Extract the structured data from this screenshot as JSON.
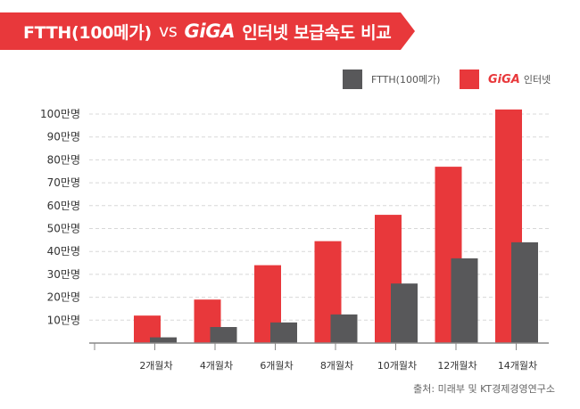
{
  "title": {
    "part1": "FTTH(100메가)",
    "vs": "vs",
    "giga": "GiGA",
    "part2": "인터넷 보급속도 비교"
  },
  "legend": {
    "ftth": "FTTH(100메가)",
    "giga_logo": "GiGA",
    "giga_suffix": "인터넷"
  },
  "source": "출처: 미래부 및 KT경제경영연구소",
  "colors": {
    "giga": "#e8383b",
    "ftth": "#58585a",
    "accent": "#e8383b"
  },
  "chart_data": {
    "type": "bar",
    "categories": [
      "2개월차",
      "4개월차",
      "6개월차",
      "8개월차",
      "10개월차",
      "12개월차",
      "14개월차"
    ],
    "series": [
      {
        "name": "GiGA 인터넷",
        "values": [
          12,
          19,
          34,
          44.5,
          56,
          77,
          102
        ]
      },
      {
        "name": "FTTH(100메가)",
        "values": [
          2.5,
          7,
          9,
          12.5,
          26,
          37,
          44
        ]
      }
    ],
    "yticks": [
      "10만명",
      "20만명",
      "30만명",
      "40만명",
      "50만명",
      "60만명",
      "70만명",
      "80만명",
      "90만명",
      "100만명"
    ],
    "ylim": [
      0,
      105
    ],
    "grid": true,
    "legend_position": "top-right"
  }
}
